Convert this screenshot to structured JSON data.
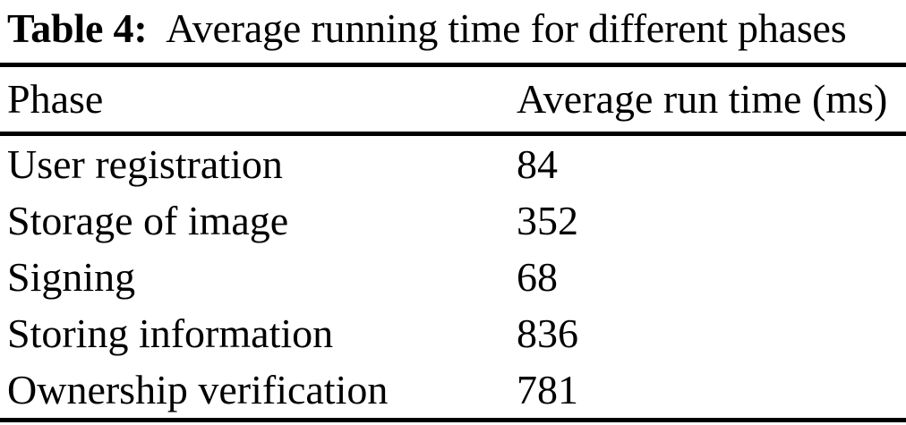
{
  "title": {
    "label": "Table 4:",
    "text": "Average running time for different phases"
  },
  "table": {
    "columns": [
      "Phase",
      "Average run time (ms)"
    ],
    "rows": [
      {
        "phase": "User registration",
        "value": "84"
      },
      {
        "phase": "Storage of image",
        "value": "352"
      },
      {
        "phase": "Signing",
        "value": "68"
      },
      {
        "phase": "Storing information",
        "value": "836"
      },
      {
        "phase": "Ownership verification",
        "value": "781"
      }
    ]
  },
  "chart_data": {
    "type": "table",
    "title": "Table 4: Average running time for different phases",
    "columns": [
      "Phase",
      "Average run time (ms)"
    ],
    "categories": [
      "User registration",
      "Storage of image",
      "Signing",
      "Storing information",
      "Ownership verification"
    ],
    "values": [
      84,
      352,
      68,
      836,
      781
    ]
  },
  "colors": {
    "text": "#000000",
    "background": "#ffffff",
    "rule": "#000000"
  }
}
